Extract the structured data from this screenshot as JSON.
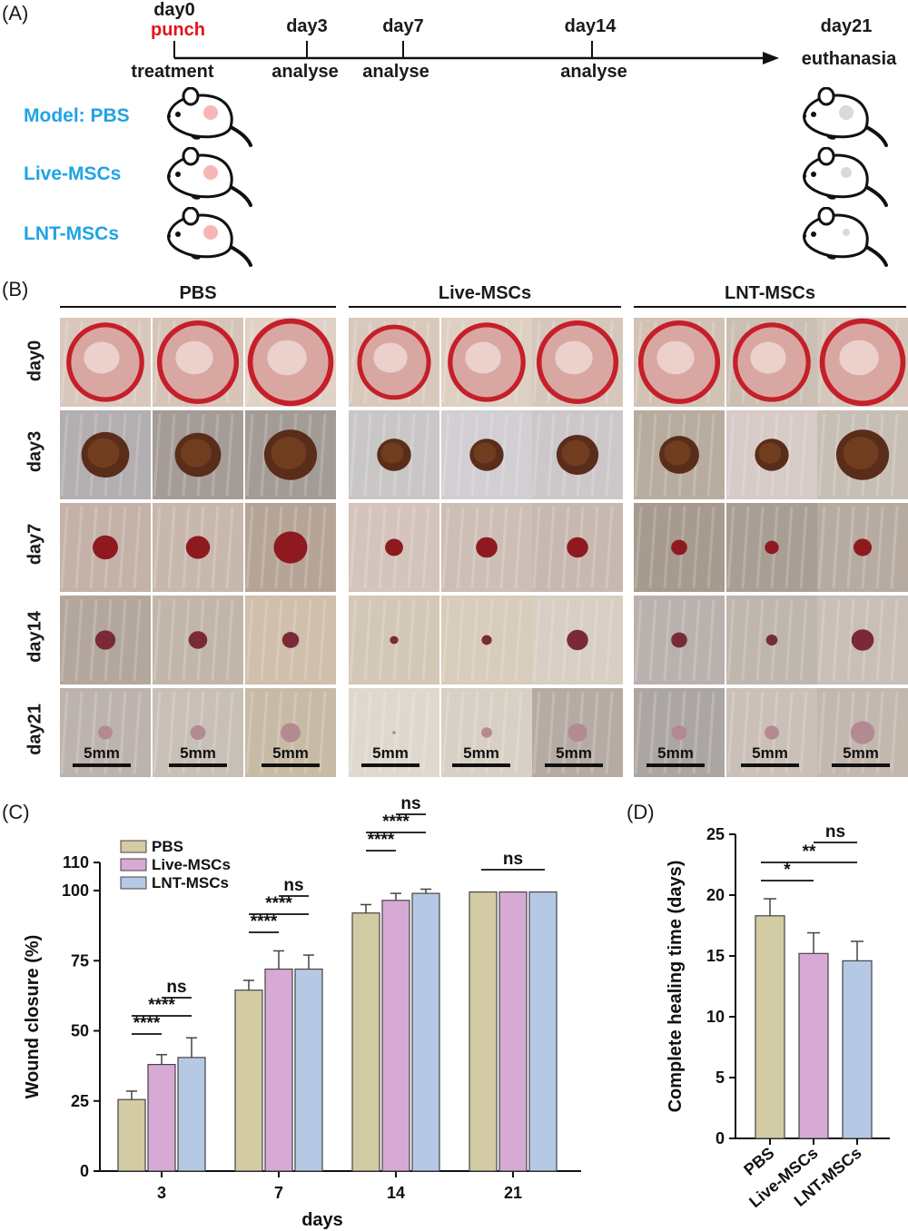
{
  "panels": {
    "a": "(A)",
    "b": "(B)",
    "c": "(C)",
    "d": "(D)"
  },
  "timeline": {
    "events": [
      {
        "day": "day0",
        "top": "punch",
        "bottom": "treatment"
      },
      {
        "day": "day3",
        "bottom": "analyse"
      },
      {
        "day": "day7",
        "bottom": "analyse"
      },
      {
        "day": "day14",
        "bottom": "analyse"
      },
      {
        "day": "day21",
        "bottom": "euthanasia"
      }
    ],
    "groups": [
      "Model: PBS",
      "Live-MSCs",
      "LNT-MSCs"
    ],
    "colors": {
      "punch": "#e0151b",
      "group": "#1fa3e6",
      "wound_start": "#f7b6b6",
      "wound_end": "#d9d9d9"
    }
  },
  "photos": {
    "columns": [
      "PBS",
      "Live-MSCs",
      "LNT-MSCs"
    ],
    "rows": [
      "day0",
      "day3",
      "day7",
      "day14",
      "day21"
    ],
    "scale_label": "5mm"
  },
  "chart_data": [
    {
      "type": "bar",
      "panel": "C",
      "xlabel": "days",
      "ylabel": "Wound closure (%)",
      "categories": [
        "3",
        "7",
        "14",
        "21"
      ],
      "yticks": [
        0,
        25,
        50,
        75,
        100,
        110
      ],
      "ylim": [
        0,
        110
      ],
      "series": [
        {
          "name": "PBS",
          "color": "#d2cba4",
          "values": [
            25.5,
            64.5,
            92.0,
            99.5
          ],
          "errors": [
            3,
            3.5,
            3,
            0
          ]
        },
        {
          "name": "Live-MSCs",
          "color": "#d7aad6",
          "values": [
            38.0,
            72.0,
            96.5,
            99.5
          ],
          "errors": [
            3.5,
            6.5,
            2.5,
            0
          ]
        },
        {
          "name": "LNT-MSCs",
          "color": "#b5c9e5",
          "values": [
            40.5,
            72.0,
            99.0,
            99.5
          ],
          "errors": [
            7,
            5,
            1.5,
            0
          ]
        }
      ],
      "significance": [
        "****",
        "****",
        "ns",
        "****",
        "****",
        "ns",
        "****",
        "****",
        "ns",
        "ns"
      ],
      "legend_position": "top-left"
    },
    {
      "type": "bar",
      "panel": "D",
      "ylabel": "Complete healing time (days)",
      "categories": [
        "PBS",
        "Live-MSCs",
        "LNT-MSCs"
      ],
      "yticks": [
        0,
        5,
        10,
        15,
        20,
        25
      ],
      "ylim": [
        0,
        25
      ],
      "values": [
        18.3,
        15.2,
        14.6
      ],
      "errors": [
        1.4,
        1.7,
        1.6
      ],
      "colors": [
        "#d2cba4",
        "#d7aad6",
        "#b5c9e5"
      ],
      "significance": [
        "*",
        "**",
        "ns"
      ]
    }
  ]
}
